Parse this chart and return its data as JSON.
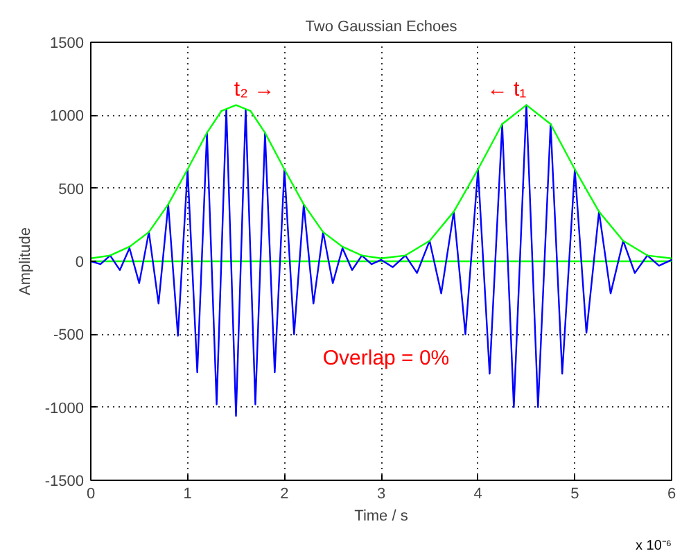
{
  "chart_data": {
    "type": "line",
    "title": "Two Gaussian Echoes",
    "xlabel": "Time / s",
    "ylabel": "Amplitude",
    "xlim": [
      0,
      6
    ],
    "xticks": [
      0,
      1,
      2,
      3,
      4,
      5,
      6
    ],
    "ylim": [
      -1500,
      1500
    ],
    "yticks": [
      -1500,
      -1000,
      -500,
      0,
      500,
      1000,
      1500
    ],
    "grid": true,
    "line_style": "solid",
    "marker": "none",
    "series": [
      {
        "color": "#00ff00",
        "x": [
          0,
          6
        ],
        "values": [
          0,
          0
        ]
      },
      {
        "color": "#0000ff",
        "x": [
          0,
          0.1,
          0.2,
          0.3,
          0.4,
          0.5,
          0.6,
          0.7,
          0.8,
          0.9,
          1.0,
          1.1,
          1.2,
          1.3,
          1.4,
          1.5,
          1.6,
          1.7,
          1.8,
          1.9,
          2.0,
          2.1,
          2.2,
          2.3,
          2.4,
          2.5,
          2.6,
          2.7,
          2.8,
          2.9,
          3.0,
          3.12,
          3.25,
          3.37,
          3.5,
          3.62,
          3.75,
          3.87,
          4.0,
          4.12,
          4.25,
          4.37,
          4.5,
          4.62,
          4.75,
          4.87,
          5.0,
          5.12,
          5.25,
          5.37,
          5.5,
          5.62,
          5.75,
          5.87,
          6.0
        ],
        "values": [
          0,
          -20,
          40,
          -60,
          90,
          -150,
          200,
          -290,
          390,
          -510,
          630,
          -760,
          880,
          -980,
          1040,
          -1060,
          1040,
          -980,
          880,
          -760,
          630,
          -500,
          390,
          -290,
          200,
          -150,
          90,
          -60,
          40,
          -20,
          10,
          -40,
          40,
          -80,
          140,
          -220,
          340,
          -500,
          630,
          -770,
          940,
          -1000,
          1070,
          -1000,
          940,
          -770,
          630,
          -490,
          340,
          -220,
          140,
          -80,
          40,
          -30,
          10
        ]
      },
      {
        "color": "#00ff00",
        "x": [
          0,
          0.2,
          0.4,
          0.6,
          0.8,
          1.0,
          1.2,
          1.35,
          1.5,
          1.65,
          1.8,
          2.0,
          2.2,
          2.4,
          2.6,
          2.8,
          3.0,
          3.25,
          3.5,
          3.75,
          4.0,
          4.25,
          4.5,
          4.75,
          5.0,
          5.25,
          5.5,
          5.75,
          6.0
        ],
        "values": [
          20,
          40,
          100,
          200,
          390,
          630,
          880,
          1030,
          1070,
          1030,
          880,
          630,
          390,
          200,
          100,
          40,
          20,
          40,
          140,
          340,
          630,
          940,
          1070,
          940,
          630,
          340,
          140,
          40,
          20
        ]
      }
    ],
    "annotations": [
      "t₂ →",
      "← t₁",
      "Overlap = 0%",
      "x 10⁻⁶"
    ]
  }
}
